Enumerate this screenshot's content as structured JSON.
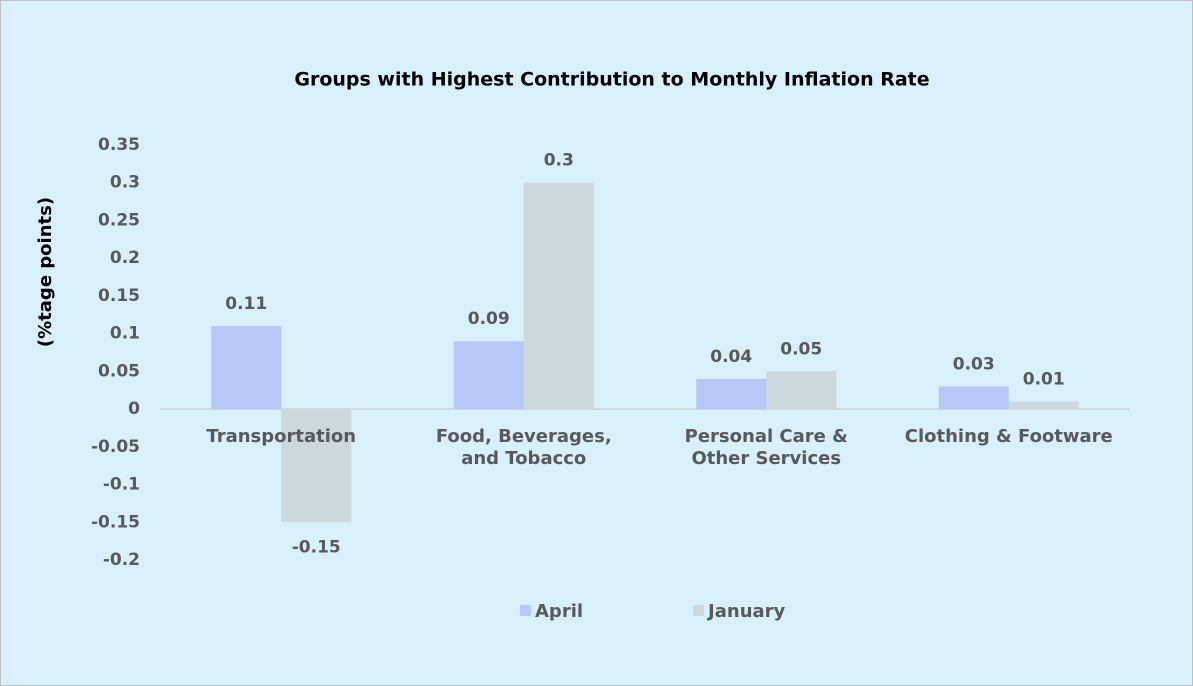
{
  "chart_data": {
    "type": "bar",
    "title": "Groups with Highest Contribution to Monthly Inflation Rate",
    "y_label": "(%tage points)",
    "categories": [
      "Transportation",
      "Food, Beverages,\nand Tobacco",
      "Personal Care &\nOther Services",
      "Clothing & Footware"
    ],
    "series": [
      {
        "name": "April",
        "color": "#b3c8f6",
        "values": [
          0.11,
          0.09,
          0.04,
          0.03
        ]
      },
      {
        "name": "January",
        "color": "#ccd8dc",
        "values": [
          -0.15,
          0.3,
          0.05,
          0.01
        ]
      }
    ],
    "ylim": [
      -0.2,
      0.35
    ],
    "yticks": [
      -0.2,
      -0.15,
      -0.1,
      -0.05,
      0,
      0.05,
      0.1,
      0.15,
      0.2,
      0.25,
      0.3,
      0.35
    ],
    "grid": false,
    "legend": "bottom"
  }
}
